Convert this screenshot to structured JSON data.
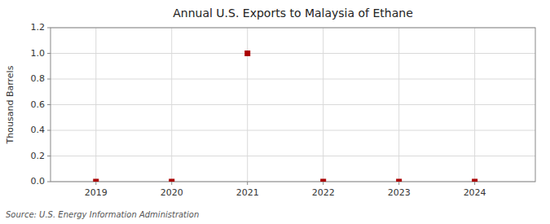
{
  "chart_data": {
    "type": "scatter",
    "title": "Annual U.S. Exports to Malaysia of Ethane",
    "ylabel": "Thousand Barrels",
    "annotations": [
      "Source: U.S. Energy Information Administration"
    ],
    "x": [
      2019,
      2020,
      2021,
      2022,
      2023,
      2024
    ],
    "values": [
      0,
      0,
      1.0,
      0,
      0,
      0
    ],
    "color": "#aa0000",
    "marker": "square",
    "xlim": [
      2018.4,
      2024.8
    ],
    "ylim": [
      0.0,
      1.2
    ],
    "xticks": [
      2019,
      2020,
      2021,
      2022,
      2023,
      2024
    ],
    "yticks": [
      {
        "value": 0.0,
        "label": "0.0"
      },
      {
        "value": 0.2,
        "label": "0.2"
      },
      {
        "value": 0.4,
        "label": "0.4"
      },
      {
        "value": 0.6,
        "label": "0.6"
      },
      {
        "value": 0.8,
        "label": "0.8"
      },
      {
        "value": 1.0,
        "label": "1.0"
      },
      {
        "value": 1.2,
        "label": "1.2"
      }
    ],
    "grid": true
  }
}
